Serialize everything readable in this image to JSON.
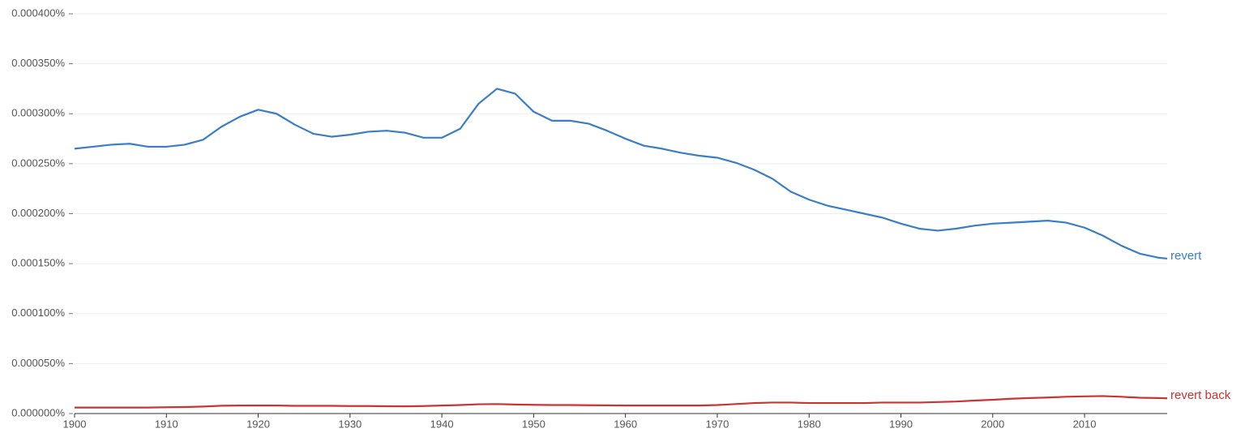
{
  "chart_data": {
    "type": "line",
    "x": [
      1900,
      1902,
      1904,
      1906,
      1908,
      1910,
      1912,
      1914,
      1916,
      1918,
      1920,
      1922,
      1924,
      1926,
      1928,
      1930,
      1932,
      1934,
      1936,
      1938,
      1940,
      1942,
      1944,
      1946,
      1948,
      1950,
      1952,
      1954,
      1956,
      1958,
      1960,
      1962,
      1964,
      1966,
      1968,
      1970,
      1972,
      1974,
      1976,
      1978,
      1980,
      1982,
      1984,
      1986,
      1988,
      1990,
      1992,
      1994,
      1996,
      1998,
      2000,
      2002,
      2004,
      2006,
      2008,
      2010,
      2012,
      2014,
      2016,
      2018,
      2019
    ],
    "series": [
      {
        "name": "revert",
        "color": "#3a7dc9",
        "values": [
          0.000265,
          0.000267,
          0.000269,
          0.00027,
          0.000267,
          0.000267,
          0.000269,
          0.000274,
          0.000287,
          0.000297,
          0.000304,
          0.0003,
          0.000289,
          0.00028,
          0.000277,
          0.000279,
          0.000282,
          0.000283,
          0.000281,
          0.000276,
          0.000276,
          0.000285,
          0.00031,
          0.000325,
          0.00032,
          0.000302,
          0.000293,
          0.000293,
          0.00029,
          0.000283,
          0.000275,
          0.000268,
          0.000265,
          0.000261,
          0.000258,
          0.000256,
          0.000251,
          0.000244,
          0.000235,
          0.000222,
          0.000214,
          0.000208,
          0.000204,
          0.0002,
          0.000196,
          0.00019,
          0.000185,
          0.000183,
          0.000185,
          0.000188,
          0.00019,
          0.000191,
          0.000192,
          0.000193,
          0.000191,
          0.000186,
          0.000178,
          0.000168,
          0.00016,
          0.000156,
          0.000155
        ]
      },
      {
        "name": "revert back",
        "color": "#cc3333",
        "values": [
          6e-06,
          6e-06,
          6e-06,
          6e-06,
          6e-06,
          6.3e-06,
          6.5e-06,
          7e-06,
          7.8e-06,
          8e-06,
          8e-06,
          8e-06,
          7.7e-06,
          7.7e-06,
          7.7e-06,
          7.5e-06,
          7.5e-06,
          7.3e-06,
          7.2e-06,
          7.5e-06,
          8e-06,
          8.5e-06,
          9.3e-06,
          9.5e-06,
          9e-06,
          8.7e-06,
          8.5e-06,
          8.5e-06,
          8.3e-06,
          8.2e-06,
          8e-06,
          8e-06,
          8e-06,
          8e-06,
          8e-06,
          8.5e-06,
          9.5e-06,
          1.05e-05,
          1.1e-05,
          1.1e-05,
          1.05e-05,
          1.05e-05,
          1.05e-05,
          1.05e-05,
          1.1e-05,
          1.1e-05,
          1.1e-05,
          1.15e-05,
          1.2e-05,
          1.3e-05,
          1.38e-05,
          1.48e-05,
          1.55e-05,
          1.6e-05,
          1.68e-05,
          1.72e-05,
          1.75e-05,
          1.68e-05,
          1.58e-05,
          1.55e-05,
          1.52e-05
        ]
      }
    ],
    "xlim": [
      1900,
      2019
    ],
    "xticks": [
      1900,
      1910,
      1920,
      1930,
      1940,
      1950,
      1960,
      1970,
      1980,
      1990,
      2000,
      2010
    ],
    "ylim": [
      0,
      0.0004
    ],
    "yticks": [
      {
        "value": 0,
        "label": "0.000000%"
      },
      {
        "value": 5e-05,
        "label": "0.000050%"
      },
      {
        "value": 0.0001,
        "label": "0.000100%"
      },
      {
        "value": 0.00015,
        "label": "0.000150%"
      },
      {
        "value": 0.0002,
        "label": "0.000200%"
      },
      {
        "value": 0.00025,
        "label": "0.000250%"
      },
      {
        "value": 0.0003,
        "label": "0.000300%"
      },
      {
        "value": 0.00035,
        "label": "0.000350%"
      },
      {
        "value": 0.0004,
        "label": "0.000400%"
      }
    ],
    "grid": true
  }
}
